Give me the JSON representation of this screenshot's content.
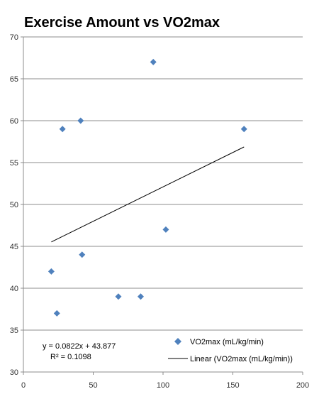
{
  "chart_data": {
    "type": "scatter",
    "title": "Exercise Amount vs VO2max",
    "xlabel": "",
    "ylabel": "",
    "xlim": [
      0,
      200
    ],
    "ylim": [
      30,
      70
    ],
    "x_ticks": [
      "0",
      "50",
      "100",
      "150",
      "200"
    ],
    "y_ticks": [
      "30",
      "35",
      "40",
      "45",
      "50",
      "55",
      "60",
      "65",
      "70"
    ],
    "grid": "horizontal",
    "legend_position": "bottom-right",
    "series": [
      {
        "name": "VO2max (mL/kg/min)",
        "marker": "diamond",
        "color": "#4f81bd",
        "points": [
          {
            "x": 20,
            "y": 42
          },
          {
            "x": 24,
            "y": 37
          },
          {
            "x": 28,
            "y": 59
          },
          {
            "x": 41,
            "y": 60
          },
          {
            "x": 42,
            "y": 44
          },
          {
            "x": 68,
            "y": 39
          },
          {
            "x": 84,
            "y": 39
          },
          {
            "x": 93,
            "y": 67
          },
          {
            "x": 102,
            "y": 47
          },
          {
            "x": 158,
            "y": 59
          }
        ]
      }
    ],
    "trendline": {
      "name": "Linear (VO2max (mL/kg/min))",
      "type": "linear",
      "color": "#000000",
      "slope": 0.0822,
      "intercept": 43.877,
      "x_start": 20,
      "x_end": 158,
      "equation": "y = 0.0822x + 43.877",
      "r_squared": "R² = 0.1098"
    }
  }
}
